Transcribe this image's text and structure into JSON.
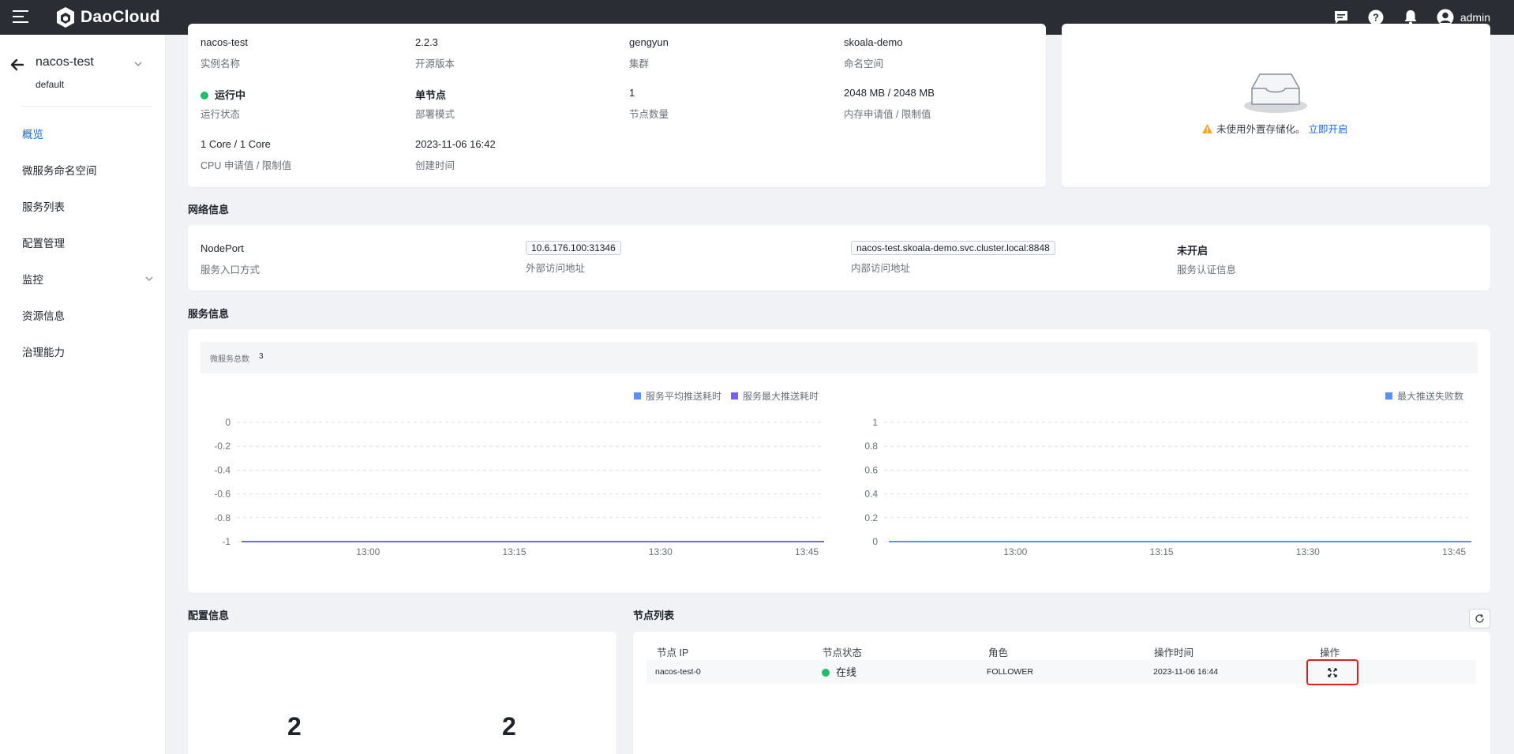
{
  "topbar": {
    "brand": "DaoCloud",
    "user_name": "admin"
  },
  "sidebar": {
    "instance_name": "nacos-test",
    "namespace": "default",
    "items": [
      {
        "label": "概览",
        "active": true
      },
      {
        "label": "微服务命名空间"
      },
      {
        "label": "服务列表"
      },
      {
        "label": "配置管理"
      },
      {
        "label": "监控"
      },
      {
        "label": "资源信息"
      },
      {
        "label": "治理能力"
      }
    ]
  },
  "basic_info": {
    "instance_name": {
      "value": "nacos-test",
      "label": "实例名称"
    },
    "version": {
      "value": "2.2.3",
      "label": "开源版本"
    },
    "cluster": {
      "value": "gengyun",
      "label": "集群"
    },
    "namespace": {
      "value": "skoala-demo",
      "label": "命名空间"
    },
    "status": {
      "value": "运行中",
      "label": "运行状态"
    },
    "deploy_mode": {
      "value": "单节点",
      "label": "部署模式"
    },
    "node_count": {
      "value": "1",
      "label": "节点数量"
    },
    "memory": {
      "value": "2048 MB / 2048 MB",
      "label": "内存申请值 / 限制值"
    },
    "cpu": {
      "value": "1 Core / 1 Core",
      "label": "CPU 申请值 / 限制值"
    },
    "created": {
      "value": "2023-11-06 16:42",
      "label": "创建时间"
    }
  },
  "storage": {
    "message": "未使用外置存储化。",
    "link": "立即开启"
  },
  "network": {
    "title": "网络信息",
    "access_mode": {
      "value": "NodePort",
      "label": "服务入口方式"
    },
    "external": {
      "value": "10.6.176.100:31346",
      "label": "外部访问地址"
    },
    "internal": {
      "value": "nacos-test.skoala-demo.svc.cluster.local:8848",
      "label": "内部访问地址"
    },
    "auth": {
      "value": "未开启",
      "label": "服务认证信息"
    }
  },
  "service": {
    "title": "服务信息",
    "total_label": "微服务总数",
    "total_value": "3"
  },
  "chart_data": [
    {
      "type": "line",
      "x_ticks": [
        "13:00",
        "13:15",
        "13:30",
        "13:45"
      ],
      "y_ticks": [
        "0",
        "-0.2",
        "-0.4",
        "-0.6",
        "-0.8",
        "-1"
      ],
      "ylim": [
        -1,
        0
      ],
      "grid": true,
      "legend_position": "top-right",
      "series": [
        {
          "name": "服务平均推送耗时",
          "color": "#5b8ff9",
          "values": [
            -1,
            -1,
            -1,
            -1,
            -1
          ]
        },
        {
          "name": "服务最大推送耗时",
          "color": "#7b5cf5",
          "values": [
            -1,
            -1,
            -1,
            -1,
            -1
          ]
        }
      ]
    },
    {
      "type": "line",
      "x_ticks": [
        "13:00",
        "13:15",
        "13:30",
        "13:45"
      ],
      "y_ticks": [
        "1",
        "0.8",
        "0.6",
        "0.4",
        "0.2",
        "0"
      ],
      "ylim": [
        0,
        1
      ],
      "grid": true,
      "legend_position": "top-right",
      "series": [
        {
          "name": "最大推送失败数",
          "color": "#5b8ff9",
          "values": [
            0,
            0,
            0,
            0,
            0
          ]
        }
      ]
    }
  ],
  "config": {
    "title": "配置信息",
    "value_a": "2",
    "value_b": "2"
  },
  "nodes": {
    "title": "节点列表",
    "columns": [
      "节点 IP",
      "节点状态",
      "角色",
      "操作时间",
      "操作"
    ],
    "rows": [
      {
        "ip": "nacos-test-0",
        "status": "在线",
        "role": "FOLLOWER",
        "time": "2023-11-06 16:44"
      }
    ]
  },
  "colors": {
    "accent": "#1765e0",
    "topbar": "#2a2d33",
    "online": "#1fbe6b",
    "highlight": "#e02020"
  }
}
